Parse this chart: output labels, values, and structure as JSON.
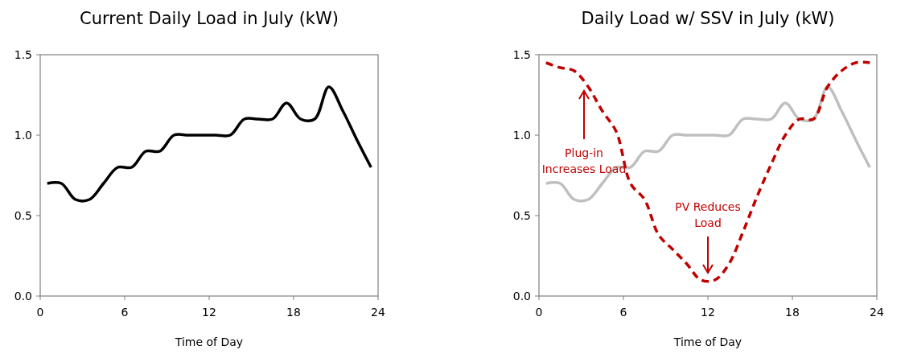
{
  "chart_data": [
    {
      "type": "line",
      "title": "Current Daily Load in July (kW)",
      "xlabel": "Time of Day",
      "xlim": [
        0,
        24
      ],
      "xticks": [
        0,
        6,
        12,
        18,
        24
      ],
      "ylim": [
        0,
        1.5
      ],
      "yticks": [
        {
          "value": 0,
          "label": "0.0"
        },
        {
          "value": 0.5,
          "label": "0.5"
        },
        {
          "value": 1,
          "label": "1.0"
        },
        {
          "value": 1.5,
          "label": "1.5"
        }
      ],
      "series": [
        {
          "color": "#000000",
          "line_style": "solid",
          "x": [
            0.5,
            1.5,
            2.5,
            3.5,
            4.5,
            5.5,
            6.5,
            7.5,
            8.5,
            9.5,
            10.5,
            11.5,
            12.5,
            13.5,
            14.5,
            15.5,
            16.5,
            17.5,
            18.5,
            19.5,
            20.5,
            21.5,
            22.5,
            23.5
          ],
          "values": [
            0.7,
            0.7,
            0.6,
            0.6,
            0.7,
            0.8,
            0.8,
            0.9,
            0.9,
            1.0,
            1.0,
            1.0,
            1.0,
            1.0,
            1.1,
            1.1,
            1.1,
            1.2,
            1.1,
            1.1,
            1.3,
            1.15,
            0.97,
            0.8
          ]
        }
      ]
    },
    {
      "type": "line",
      "title": "Daily Load w/ SSV in July (kW)",
      "xlabel": "Time of Day",
      "xlim": [
        0,
        24
      ],
      "xticks": [
        0,
        6,
        12,
        18,
        24
      ],
      "ylim": [
        0,
        1.5
      ],
      "yticks": [
        {
          "value": 0,
          "label": "0.0"
        },
        {
          "value": 0.5,
          "label": "0.5"
        },
        {
          "value": 1,
          "label": "1.0"
        },
        {
          "value": 1.5,
          "label": "1.5"
        }
      ],
      "series": [
        {
          "color": "#bfbfbf",
          "line_style": "solid",
          "x": [
            0.5,
            1.5,
            2.5,
            3.5,
            4.5,
            5.5,
            6.5,
            7.5,
            8.5,
            9.5,
            10.5,
            11.5,
            12.5,
            13.5,
            14.5,
            15.5,
            16.5,
            17.5,
            18.5,
            19.5,
            20.5,
            21.5,
            22.5,
            23.5
          ],
          "values": [
            0.7,
            0.7,
            0.6,
            0.6,
            0.7,
            0.8,
            0.8,
            0.9,
            0.9,
            1.0,
            1.0,
            1.0,
            1.0,
            1.0,
            1.1,
            1.1,
            1.1,
            1.2,
            1.1,
            1.1,
            1.3,
            1.15,
            0.97,
            0.8
          ]
        },
        {
          "color": "#c00000",
          "line_style": "dashed",
          "x": [
            0.5,
            1.5,
            2.5,
            3.5,
            4.5,
            5.5,
            6.5,
            7.5,
            8.5,
            9.5,
            10.5,
            11.5,
            12.5,
            13.5,
            14.5,
            15.5,
            16.5,
            17.5,
            18.5,
            19.5,
            20.5,
            21.5,
            22.5,
            23.5
          ],
          "values": [
            1.45,
            1.42,
            1.4,
            1.3,
            1.15,
            1.02,
            0.7,
            0.6,
            0.38,
            0.29,
            0.2,
            0.1,
            0.1,
            0.2,
            0.4,
            0.62,
            0.82,
            1.0,
            1.1,
            1.1,
            1.3,
            1.4,
            1.45,
            1.45
          ]
        }
      ],
      "annotations": [
        {
          "text": "Plug-in Increases Load",
          "x": 3.2,
          "y": 1.3
        },
        {
          "text": "PV Reduces Load",
          "x": 12,
          "y": 0.12
        }
      ]
    }
  ]
}
